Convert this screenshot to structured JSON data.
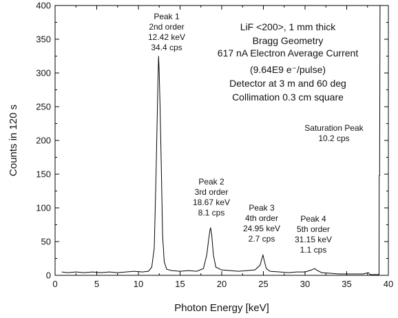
{
  "chart_data": {
    "type": "line",
    "xlabel": "Photon Energy [keV]",
    "ylabel": "Counts in 120 s",
    "xlim": [
      0,
      40
    ],
    "ylim": [
      0,
      400
    ],
    "x_ticks": [
      "0",
      "5",
      "10",
      "15",
      "20",
      "25",
      "30",
      "35",
      "40"
    ],
    "y_ticks": [
      "0",
      "50",
      "100",
      "150",
      "200",
      "250",
      "300",
      "350",
      "400"
    ],
    "grid": false,
    "info_lines": [
      "LiF <200>, 1 mm thick",
      "Bragg Geometry",
      "617 nA Electron Average Current",
      "(9.64E9 e⁻/pulse)",
      "Detector at 3 m and 60 deg",
      "Collimation 0.3 cm square"
    ],
    "annotations": [
      {
        "lines": [
          "Peak 1",
          "2nd order",
          "12.42 keV",
          "34.4 cps"
        ],
        "x": 12.42
      },
      {
        "lines": [
          "Peak 2",
          "3rd order",
          "18.67 keV",
          "8.1 cps"
        ],
        "x": 18.67
      },
      {
        "lines": [
          "Peak 3",
          "4th order",
          "24.95 keV",
          "2.7 cps"
        ],
        "x": 24.95
      },
      {
        "lines": [
          "Peak 4",
          "5th order",
          "31.15 keV",
          "1.1 cps"
        ],
        "x": 31.15
      },
      {
        "lines": [
          "Saturation Peak",
          "10.2 cps"
        ],
        "x": 39.0
      }
    ],
    "series": [
      {
        "color": "#000000",
        "x": [
          0.8,
          1.5,
          2.5,
          3.5,
          4.5,
          5.5,
          6.5,
          7.5,
          8.5,
          9.5,
          10.5,
          11.2,
          11.6,
          11.9,
          12.1,
          12.25,
          12.35,
          12.42,
          12.5,
          12.6,
          12.75,
          12.9,
          13.1,
          13.4,
          14.0,
          15.0,
          16.0,
          17.0,
          17.8,
          18.2,
          18.45,
          18.6,
          18.67,
          18.8,
          19.0,
          19.3,
          20.0,
          21.0,
          22.0,
          23.0,
          24.0,
          24.6,
          24.85,
          24.95,
          25.1,
          25.35,
          25.8,
          27.0,
          28.0,
          29.0,
          30.0,
          30.8,
          31.15,
          31.5,
          32.0,
          33.0,
          34.0,
          35.0,
          36.0,
          37.0,
          37.6,
          37.8,
          38.2,
          38.6,
          38.88,
          38.9,
          38.95,
          39.0
        ],
        "y": [
          5,
          4,
          5,
          4,
          5,
          4,
          5,
          4,
          5,
          6,
          5,
          6,
          12,
          40,
          140,
          230,
          290,
          325,
          300,
          250,
          160,
          60,
          20,
          9,
          7,
          6,
          7,
          6,
          10,
          30,
          55,
          68,
          70,
          60,
          30,
          12,
          8,
          7,
          6,
          7,
          8,
          15,
          26,
          30,
          22,
          10,
          6,
          5,
          4,
          5,
          5,
          8,
          10,
          7,
          4,
          3,
          2,
          2,
          2,
          2,
          4,
          1,
          1,
          1,
          1,
          148,
          148,
          400
        ]
      }
    ]
  }
}
